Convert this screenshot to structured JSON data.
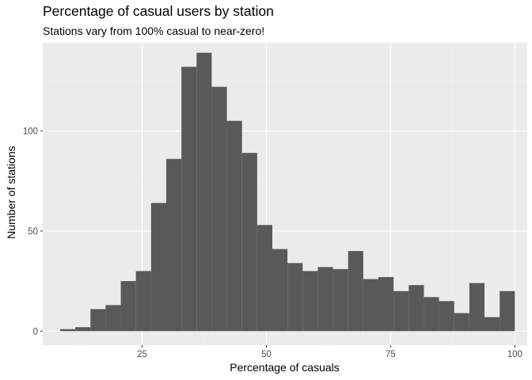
{
  "chart_data": {
    "type": "bar",
    "title": "Percentage of casual users by station",
    "subtitle": "Stations vary from 100% casual to near-zero!",
    "xlabel": "Percentage of casuals",
    "ylabel": "Number of stations",
    "xlim": [
      5,
      102.5
    ],
    "ylim": [
      -7,
      144
    ],
    "x_ticks": [
      25,
      50,
      75,
      100
    ],
    "y_ticks": [
      0,
      50,
      100
    ],
    "x_tick_labels": [
      "25",
      "50",
      "75",
      "100"
    ],
    "y_tick_labels": [
      "0",
      "50",
      "100"
    ],
    "bin_width": 3.05,
    "bins": [
      {
        "x0": 8.5,
        "x1": 11.55,
        "count": 1
      },
      {
        "x0": 11.55,
        "x1": 14.6,
        "count": 2
      },
      {
        "x0": 14.6,
        "x1": 17.65,
        "count": 11
      },
      {
        "x0": 17.65,
        "x1": 20.7,
        "count": 13
      },
      {
        "x0": 20.7,
        "x1": 23.75,
        "count": 25
      },
      {
        "x0": 23.75,
        "x1": 26.8,
        "count": 30
      },
      {
        "x0": 26.8,
        "x1": 29.85,
        "count": 64
      },
      {
        "x0": 29.85,
        "x1": 32.9,
        "count": 86
      },
      {
        "x0": 32.9,
        "x1": 35.95,
        "count": 132
      },
      {
        "x0": 35.95,
        "x1": 39.0,
        "count": 139
      },
      {
        "x0": 39.0,
        "x1": 42.05,
        "count": 122
      },
      {
        "x0": 42.05,
        "x1": 45.1,
        "count": 105
      },
      {
        "x0": 45.1,
        "x1": 48.15,
        "count": 89
      },
      {
        "x0": 48.15,
        "x1": 51.2,
        "count": 53
      },
      {
        "x0": 51.2,
        "x1": 54.25,
        "count": 41
      },
      {
        "x0": 54.25,
        "x1": 57.3,
        "count": 34
      },
      {
        "x0": 57.3,
        "x1": 60.35,
        "count": 30
      },
      {
        "x0": 60.35,
        "x1": 63.4,
        "count": 32
      },
      {
        "x0": 63.4,
        "x1": 66.45,
        "count": 31
      },
      {
        "x0": 66.45,
        "x1": 69.5,
        "count": 40
      },
      {
        "x0": 69.5,
        "x1": 72.55,
        "count": 26
      },
      {
        "x0": 72.55,
        "x1": 75.6,
        "count": 27
      },
      {
        "x0": 75.6,
        "x1": 78.65,
        "count": 20
      },
      {
        "x0": 78.65,
        "x1": 81.7,
        "count": 23
      },
      {
        "x0": 81.7,
        "x1": 84.75,
        "count": 17
      },
      {
        "x0": 84.75,
        "x1": 87.8,
        "count": 15
      },
      {
        "x0": 87.8,
        "x1": 90.85,
        "count": 9
      },
      {
        "x0": 90.85,
        "x1": 93.9,
        "count": 24
      },
      {
        "x0": 93.9,
        "x1": 96.95,
        "count": 7
      },
      {
        "x0": 96.95,
        "x1": 100.0,
        "count": 20
      }
    ],
    "grid": true,
    "legend": "none",
    "colors": {
      "bar": "#595959",
      "panel_background": "#ebebeb",
      "grid_major": "#ffffff",
      "grid_minor": "#f2f2f2"
    }
  }
}
